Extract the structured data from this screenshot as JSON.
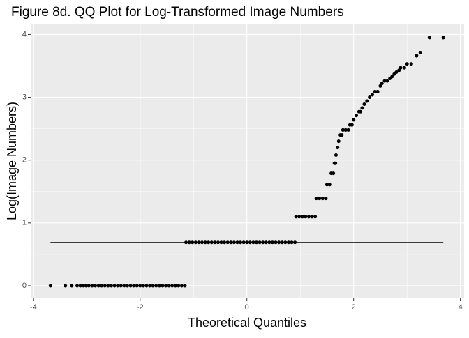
{
  "chart_data": {
    "type": "scatter",
    "title": "Figure 8d. QQ Plot for Log-Transformed Image Numbers",
    "x_label": "Theoretical Quantiles",
    "y_label": "Log(Image Numbers)",
    "xlim": [
      -4.05,
      4.07
    ],
    "ylim": [
      -0.2,
      4.16
    ],
    "xticks": [
      -4,
      -2,
      0,
      2,
      4
    ],
    "yticks": [
      0,
      1,
      2,
      3,
      4
    ],
    "grid": true,
    "color": "#000000",
    "points": {
      "x": [
        -3.68,
        -3.4,
        -3.28,
        -3.18,
        -3.12,
        -3.06,
        -3.01,
        -2.96,
        -2.9,
        -2.84,
        -2.78,
        -2.72,
        -2.66,
        -2.6,
        -2.54,
        -2.48,
        -2.42,
        -2.36,
        -2.3,
        -2.24,
        -2.18,
        -2.12,
        -2.06,
        -2.0,
        -1.94,
        -1.88,
        -1.82,
        -1.76,
        -1.7,
        -1.64,
        -1.58,
        -1.52,
        -1.46,
        -1.4,
        -1.34,
        -1.28,
        -1.22,
        -1.16,
        -1.14,
        -1.08,
        -1.02,
        -0.96,
        -0.9,
        -0.84,
        -0.78,
        -0.72,
        -0.66,
        -0.6,
        -0.54,
        -0.48,
        -0.42,
        -0.36,
        -0.3,
        -0.24,
        -0.18,
        -0.12,
        -0.06,
        0,
        0.06,
        0.12,
        0.18,
        0.24,
        0.3,
        0.36,
        0.42,
        0.48,
        0.54,
        0.6,
        0.66,
        0.72,
        0.78,
        0.84,
        0.9,
        0.92,
        0.98,
        1.04,
        1.1,
        1.16,
        1.22,
        1.28,
        1.3,
        1.36,
        1.42,
        1.48,
        1.5,
        1.55,
        1.58,
        1.62,
        1.64,
        1.66,
        1.67,
        1.7,
        1.72,
        1.75,
        1.78,
        1.8,
        1.85,
        1.9,
        1.93,
        1.97,
        2.0,
        2.05,
        2.1,
        2.13,
        2.16,
        2.2,
        2.25,
        2.3,
        2.35,
        2.4,
        2.45,
        2.5,
        2.53,
        2.58,
        2.63,
        2.68,
        2.72,
        2.76,
        2.8,
        2.85,
        2.88,
        2.95,
        3.0,
        3.08,
        3.18,
        3.25,
        3.42,
        3.68
      ],
      "y": [
        0,
        0,
        0,
        0,
        0,
        0,
        0,
        0,
        0,
        0,
        0,
        0,
        0,
        0,
        0,
        0,
        0,
        0,
        0,
        0,
        0,
        0,
        0,
        0,
        0,
        0,
        0,
        0,
        0,
        0,
        0,
        0,
        0,
        0,
        0,
        0,
        0,
        0,
        0.69,
        0.69,
        0.69,
        0.69,
        0.69,
        0.69,
        0.69,
        0.69,
        0.69,
        0.69,
        0.69,
        0.69,
        0.69,
        0.69,
        0.69,
        0.69,
        0.69,
        0.69,
        0.69,
        0.69,
        0.69,
        0.69,
        0.69,
        0.69,
        0.69,
        0.69,
        0.69,
        0.69,
        0.69,
        0.69,
        0.69,
        0.69,
        0.69,
        0.69,
        0.69,
        1.1,
        1.1,
        1.1,
        1.1,
        1.1,
        1.1,
        1.1,
        1.39,
        1.39,
        1.39,
        1.39,
        1.61,
        1.61,
        1.79,
        1.79,
        1.95,
        1.95,
        2.08,
        2.2,
        2.3,
        2.4,
        2.4,
        2.48,
        2.48,
        2.48,
        2.56,
        2.56,
        2.64,
        2.71,
        2.77,
        2.77,
        2.83,
        2.89,
        2.94,
        3.0,
        3.04,
        3.09,
        3.09,
        3.18,
        3.22,
        3.26,
        3.26,
        3.3,
        3.33,
        3.37,
        3.4,
        3.43,
        3.47,
        3.47,
        3.53,
        3.53,
        3.66,
        3.71,
        3.95,
        3.95
      ]
    },
    "line": {
      "x": [
        -3.68,
        3.68
      ],
      "y": [
        0.69,
        0.69
      ]
    }
  }
}
